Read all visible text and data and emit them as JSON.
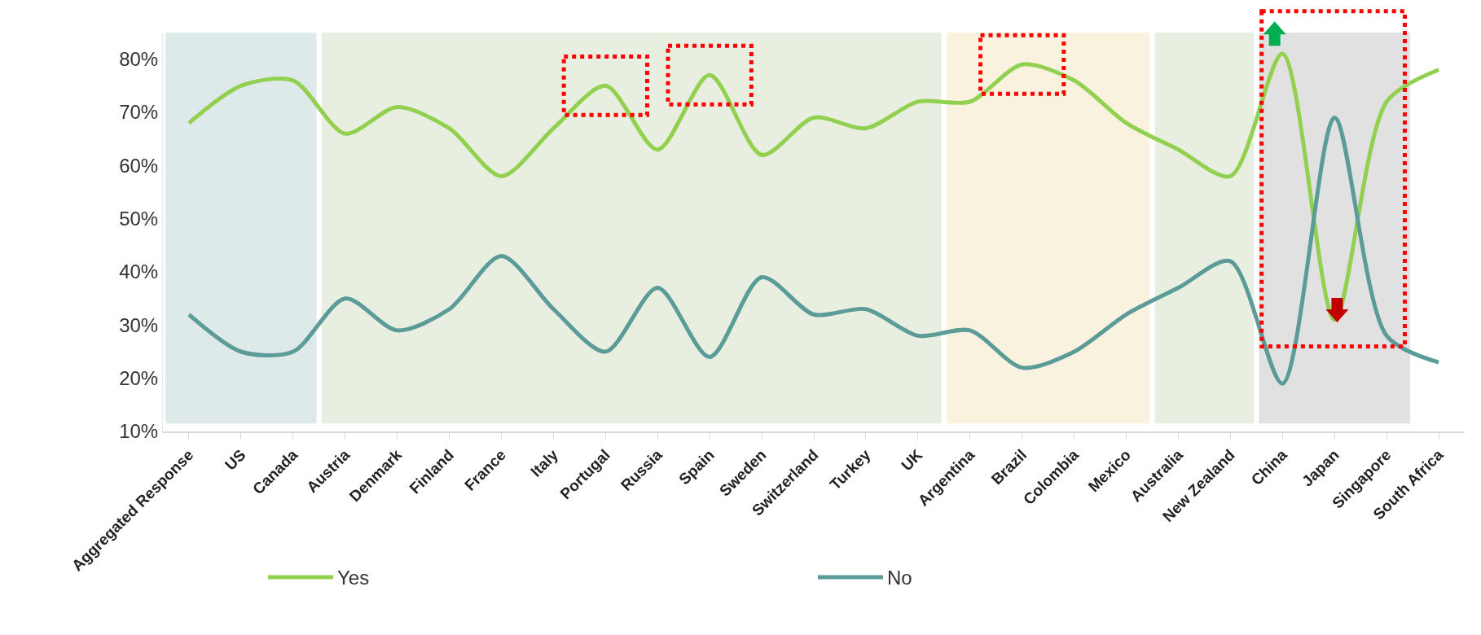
{
  "chart_data": {
    "type": "line",
    "categories": [
      "Aggregated Response",
      "US",
      "Canada",
      "Austria",
      "Denmark",
      "Finland",
      "France",
      "Italy",
      "Portugal",
      "Russia",
      "Spain",
      "Sweden",
      "Switzerland",
      "Turkey",
      "UK",
      "Argentina",
      "Brazil",
      "Colombia",
      "Mexico",
      "Australia",
      "New Zealand",
      "China",
      "Japan",
      "Singapore",
      "South Africa"
    ],
    "series": [
      {
        "name": "Yes",
        "color": "#92d050",
        "values": [
          68,
          75,
          76,
          66,
          71,
          67,
          58,
          67,
          75,
          63,
          77,
          62,
          69,
          67,
          72,
          72,
          79,
          76,
          68,
          63,
          58,
          81,
          31,
          72,
          78
        ]
      },
      {
        "name": "No",
        "color": "#5b9b98",
        "values": [
          32,
          25,
          25,
          35,
          29,
          33,
          43,
          33,
          25,
          37,
          24,
          39,
          32,
          33,
          28,
          29,
          22,
          25,
          32,
          37,
          42,
          19,
          69,
          28,
          23
        ]
      }
    ],
    "ylim": [
      10,
      85
    ],
    "yticks": [
      {
        "value": 10,
        "label": "10%"
      },
      {
        "value": 20,
        "label": "20%"
      },
      {
        "value": 30,
        "label": "30%"
      },
      {
        "value": 40,
        "label": "40%"
      },
      {
        "value": 50,
        "label": "50%"
      },
      {
        "value": 60,
        "label": "60%"
      },
      {
        "value": 70,
        "label": "70%"
      },
      {
        "value": 80,
        "label": "80%"
      }
    ],
    "bands": [
      {
        "axis": "x",
        "from": "Aggregated Response",
        "to": "Canada",
        "color": "#deeaea"
      },
      {
        "axis": "x",
        "from": "Austria",
        "to": "UK",
        "color": "#e9efe0"
      },
      {
        "axis": "x",
        "from": "Argentina",
        "to": "Mexico",
        "color": "#f8f2de"
      },
      {
        "axis": "x",
        "from": "Australia",
        "to": "New Zealand",
        "color": "#e9efe0"
      },
      {
        "axis": "x",
        "from": "China",
        "to": "Singapore",
        "color": "#e1e1e1"
      }
    ],
    "grid": false,
    "legend": "bottom",
    "marker": "none",
    "line_style": "solid"
  }
}
